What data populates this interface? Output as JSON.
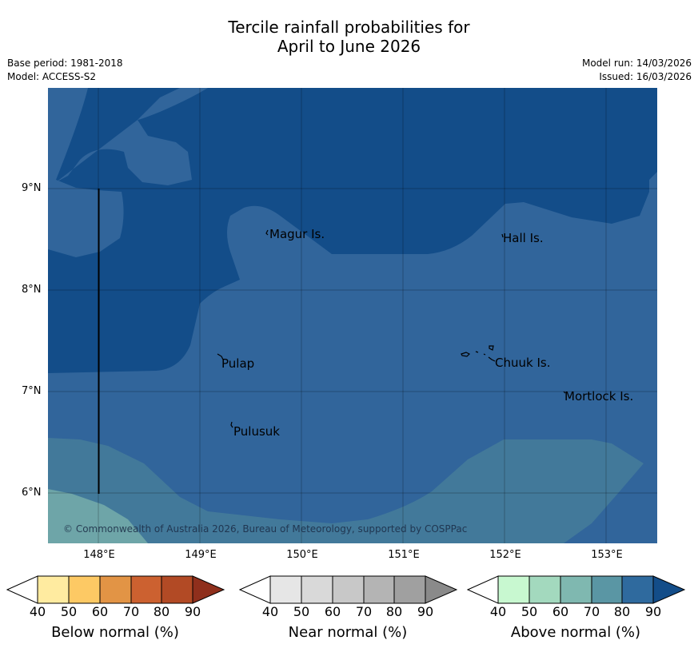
{
  "title": {
    "line1": "Tercile rainfall probabilities for",
    "line2": "April to June 2026"
  },
  "meta": {
    "base_period": "Base period: 1981-2018",
    "model": "Model: ACCESS-S2",
    "model_run": "Model run: 14/03/2026",
    "issued": "Issued: 16/03/2026"
  },
  "map": {
    "y_ticks": [
      "9°N",
      "8°N",
      "7°N",
      "6°N"
    ],
    "x_ticks": [
      "148°E",
      "149°E",
      "150°E",
      "151°E",
      "152°E",
      "153°E"
    ],
    "places": [
      "Magur Is.",
      "Hall Is.",
      "Pulap",
      "Chuuk Is.",
      "Mortlock Is.",
      "Pulusuk"
    ],
    "copyright": "© Commonwealth of Australia 2026, Bureau of Meteorology, supported by COSPPac"
  },
  "colorbars": [
    {
      "title": "Below normal (%)",
      "ticks": [
        "40",
        "50",
        "60",
        "70",
        "80",
        "90"
      ],
      "colors": [
        "#ffffff",
        "#ffeba0",
        "#fdc964",
        "#e29445",
        "#cc6130",
        "#b24a25",
        "#8f2f1c"
      ]
    },
    {
      "title": "Near normal (%)",
      "ticks": [
        "40",
        "50",
        "60",
        "70",
        "80",
        "90"
      ],
      "colors": [
        "#ffffff",
        "#e6e6e6",
        "#d9d9d9",
        "#c8c8c8",
        "#b4b4b4",
        "#a0a0a0",
        "#8a8a8a"
      ]
    },
    {
      "title": "Above normal (%)",
      "ticks": [
        "40",
        "50",
        "60",
        "70",
        "80",
        "90"
      ],
      "colors": [
        "#ffffff",
        "#c8f8d0",
        "#a3d9be",
        "#7fb8b0",
        "#5a96a4",
        "#2f6a9e",
        "#134d89"
      ]
    }
  ],
  "shade_colors": {
    "c90": "#134d89",
    "c80": "#31659b",
    "c70": "#42799a",
    "c60": "#6ea5a8"
  }
}
